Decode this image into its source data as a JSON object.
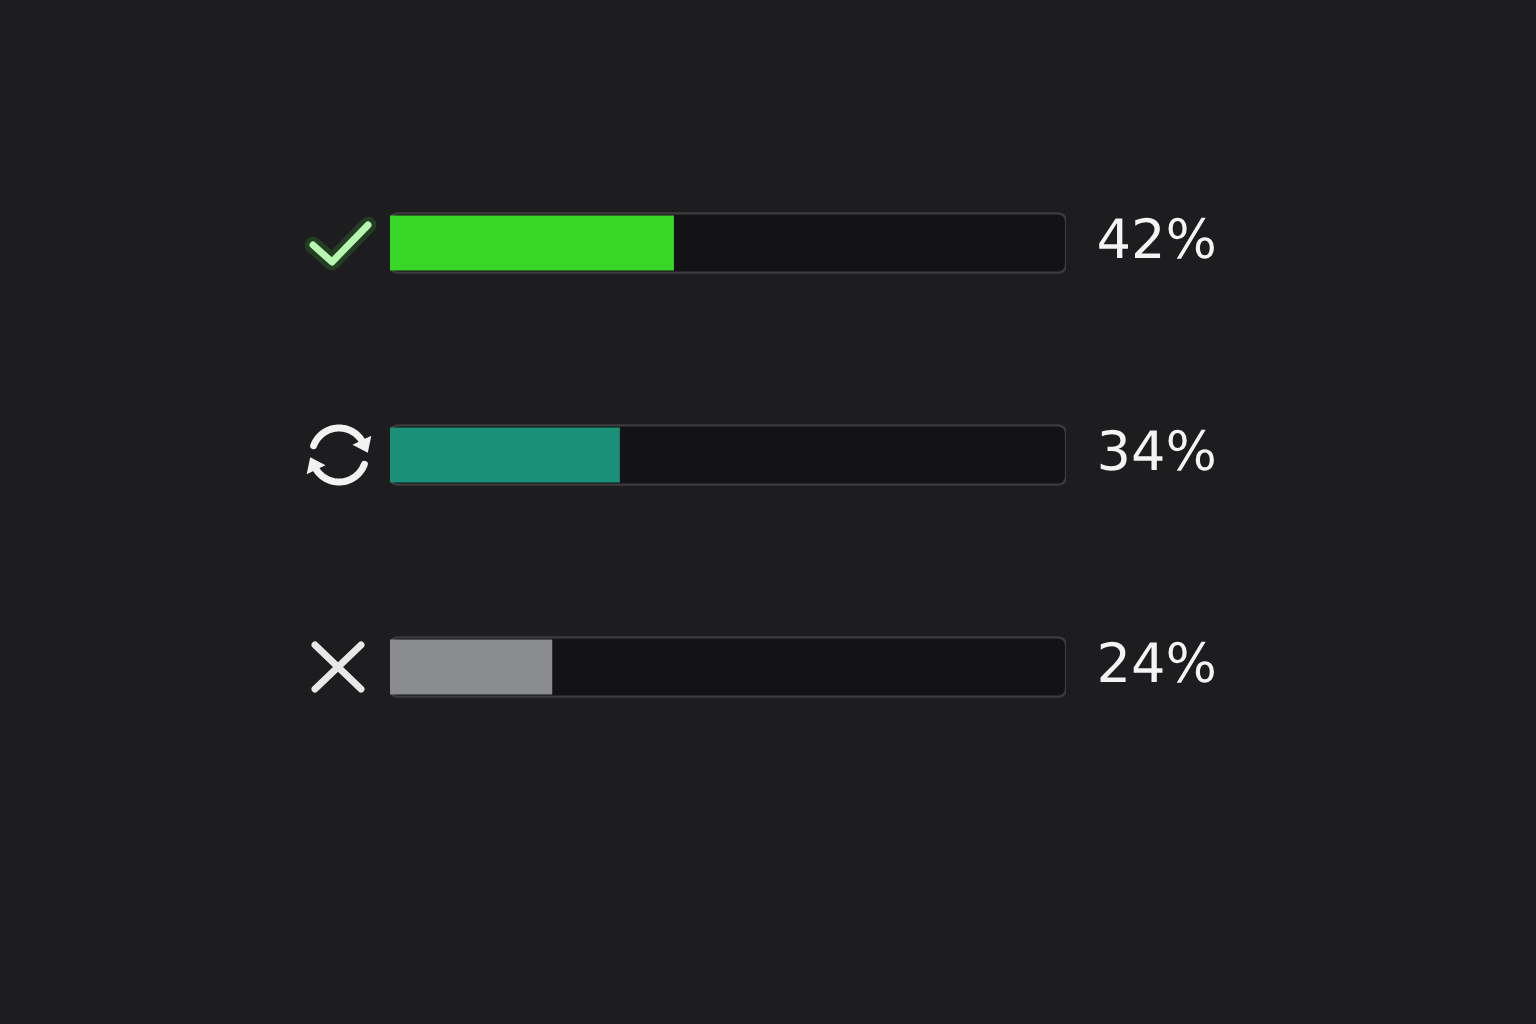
{
  "chart_data": {
    "type": "bar",
    "orientation": "horizontal",
    "categories": [
      null,
      null,
      null
    ],
    "values": [
      42,
      34,
      24
    ],
    "colors": [
      "#38d626",
      "#1b9079",
      "#8a8c90"
    ],
    "value_labels": [
      "42%",
      "34%",
      "24%"
    ],
    "xlim": [
      0,
      100
    ]
  }
}
